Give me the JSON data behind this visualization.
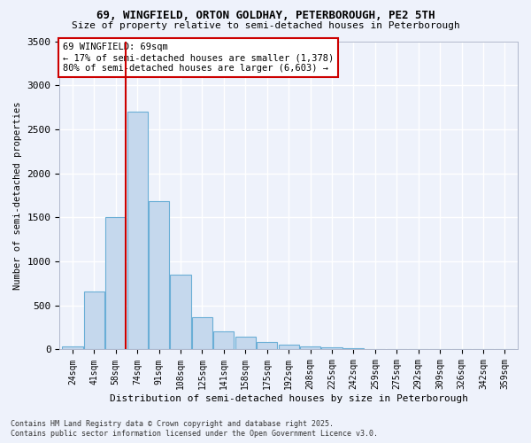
{
  "title_line1": "69, WINGFIELD, ORTON GOLDHAY, PETERBOROUGH, PE2 5TH",
  "title_line2": "Size of property relative to semi-detached houses in Peterborough",
  "xlabel": "Distribution of semi-detached houses by size in Peterborough",
  "ylabel": "Number of semi-detached properties",
  "categories": [
    "24sqm",
    "41sqm",
    "58sqm",
    "74sqm",
    "91sqm",
    "108sqm",
    "125sqm",
    "141sqm",
    "158sqm",
    "175sqm",
    "192sqm",
    "208sqm",
    "225sqm",
    "242sqm",
    "259sqm",
    "275sqm",
    "292sqm",
    "309sqm",
    "326sqm",
    "342sqm",
    "359sqm"
  ],
  "values": [
    35,
    660,
    1500,
    2700,
    1680,
    850,
    370,
    210,
    150,
    90,
    55,
    30,
    20,
    10,
    5,
    3,
    2,
    1,
    1,
    0,
    0
  ],
  "bar_color": "#c5d8ed",
  "bar_edge_color": "#6aaed6",
  "annotation_text": "69 WINGFIELD: 69sqm\n← 17% of semi-detached houses are smaller (1,378)\n80% of semi-detached houses are larger (6,603) →",
  "annotation_box_color": "#ffffff",
  "annotation_box_edge": "#cc0000",
  "redline_color": "#cc0000",
  "background_color": "#eef2fb",
  "grid_color": "#ffffff",
  "ylim": [
    0,
    3500
  ],
  "yticks": [
    0,
    500,
    1000,
    1500,
    2000,
    2500,
    3000,
    3500
  ],
  "footer_line1": "Contains HM Land Registry data © Crown copyright and database right 2025.",
  "footer_line2": "Contains public sector information licensed under the Open Government Licence v3.0."
}
